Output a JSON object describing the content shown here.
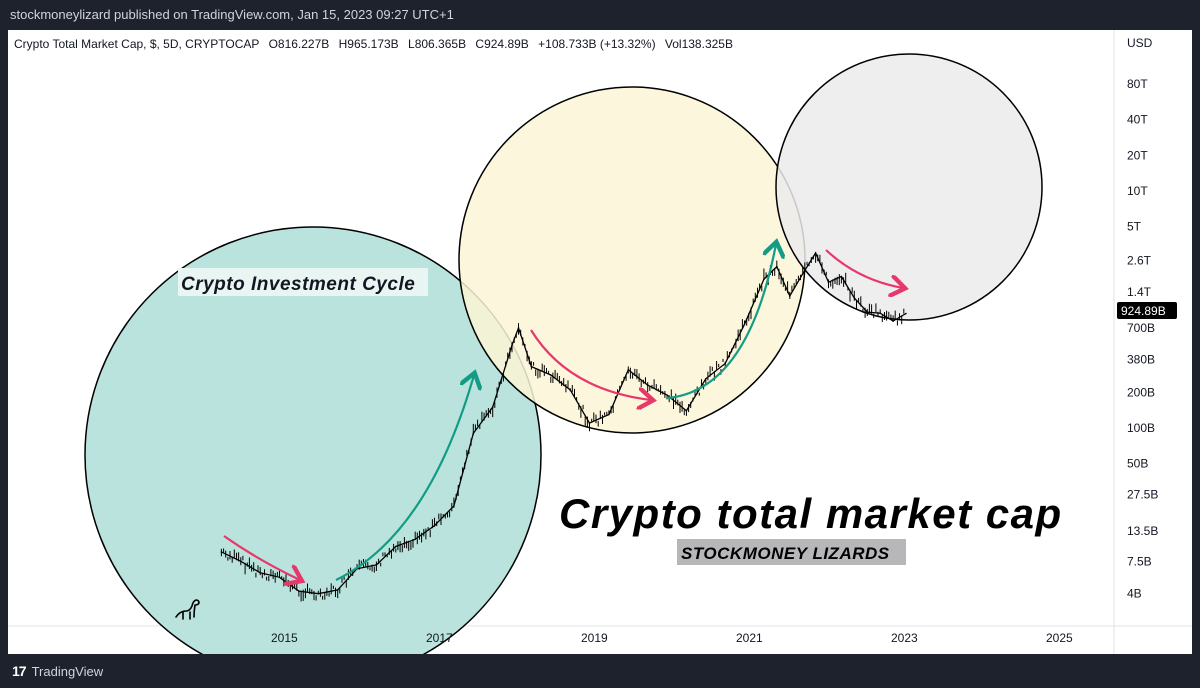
{
  "header": {
    "published_line": "stockmoneylizard published on TradingView.com, Jan 15, 2023 09:27 UTC+1"
  },
  "footer": {
    "brand_label": "TradingView"
  },
  "chart_data": {
    "type": "line",
    "symbol_line": {
      "name": "Crypto Total Market Cap, $, 5D, CRYPTOCAP",
      "open": "O816.227B",
      "high": "H965.173B",
      "low": "L806.365B",
      "close": "C924.89B",
      "change": "+108.733B (+13.32%)",
      "volume": "Vol138.325B"
    },
    "scale": "log",
    "y_axis_unit": "USD",
    "y_tick_labels": [
      {
        "label": "80T",
        "value": 80000000000000.0
      },
      {
        "label": "40T",
        "value": 40000000000000.0
      },
      {
        "label": "20T",
        "value": 20000000000000.0
      },
      {
        "label": "10T",
        "value": 10000000000000.0
      },
      {
        "label": "5T",
        "value": 5000000000000.0
      },
      {
        "label": "2.6T",
        "value": 2600000000000.0
      },
      {
        "label": "1.4T",
        "value": 1400000000000.0
      },
      {
        "label": "700B",
        "value": 700000000000.0
      },
      {
        "label": "380B",
        "value": 380000000000.0
      },
      {
        "label": "200B",
        "value": 200000000000.0
      },
      {
        "label": "100B",
        "value": 100000000000.0
      },
      {
        "label": "50B",
        "value": 50000000000.0
      },
      {
        "label": "27.5B",
        "value": 27500000000.0
      },
      {
        "label": "13.5B",
        "value": 13500000000.0
      },
      {
        "label": "7.5B",
        "value": 7500000000.0
      },
      {
        "label": "4B",
        "value": 4000000000.0
      }
    ],
    "x_tick_labels": [
      "2015",
      "2017",
      "2019",
      "2021",
      "2023",
      "2025"
    ],
    "last_price_label": "924.89B",
    "series": [
      {
        "x": [
          "2014-03",
          "2014-06",
          "2014-09",
          "2014-12",
          "2015-03",
          "2015-06",
          "2015-09",
          "2015-12",
          "2016-03",
          "2016-06",
          "2016-09",
          "2016-12",
          "2017-03",
          "2017-06",
          "2017-09",
          "2017-12",
          "2018-01",
          "2018-03",
          "2018-06",
          "2018-09",
          "2018-12",
          "2019-03",
          "2019-06",
          "2019-09",
          "2019-12",
          "2020-03",
          "2020-06",
          "2020-09",
          "2020-12",
          "2021-03",
          "2021-05",
          "2021-07",
          "2021-09",
          "2021-11",
          "2022-01",
          "2022-03",
          "2022-05",
          "2022-07",
          "2022-09",
          "2022-11",
          "2023-01"
        ],
        "y": [
          9000000000.0,
          7500000000.0,
          6000000000.0,
          5500000000.0,
          4200000000.0,
          4000000000.0,
          4300000000.0,
          6500000000.0,
          7000000000.0,
          10000000000.0,
          11500000000.0,
          15000000000.0,
          22000000000.0,
          90000000000.0,
          150000000000.0,
          500000000000.0,
          700000000000.0,
          330000000000.0,
          280000000000.0,
          210000000000.0,
          110000000000.0,
          130000000000.0,
          310000000000.0,
          230000000000.0,
          190000000000.0,
          140000000000.0,
          260000000000.0,
          350000000000.0,
          750000000000.0,
          1800000000000.0,
          2300000000000.0,
          1300000000000.0,
          2000000000000.0,
          3000000000000.0,
          1700000000000.0,
          1900000000000.0,
          1250000000000.0,
          950000000000.0,
          930000000000.0,
          800000000000.0,
          925000000000.0
        ]
      }
    ],
    "annotations": {
      "cycle_label": "Crypto Investment Cycle",
      "main_title": "Crypto total market cap",
      "brand_label": "STOCKMONEY LIZARDS"
    },
    "colors": {
      "circle_1_fill": "#b9e3dc",
      "circle_2_fill": "#fbf5d6",
      "circle_3_fill": "#ebebec",
      "down_arrow": "#e8386b",
      "up_arrow": "#129c85",
      "price_line": "#000000"
    },
    "icons": [
      "dinosaur-icon",
      "tradingview-logo-icon"
    ]
  }
}
